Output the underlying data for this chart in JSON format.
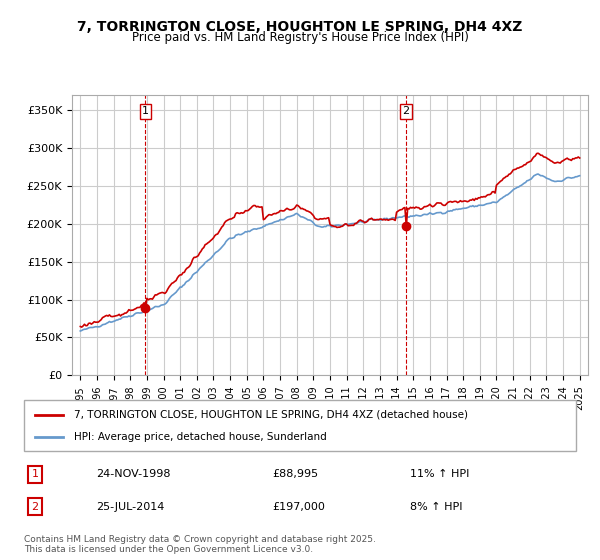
{
  "title": "7, TORRINGTON CLOSE, HOUGHTON LE SPRING, DH4 4XZ",
  "subtitle": "Price paid vs. HM Land Registry's House Price Index (HPI)",
  "legend_line1": "7, TORRINGTON CLOSE, HOUGHTON LE SPRING, DH4 4XZ (detached house)",
  "legend_line2": "HPI: Average price, detached house, Sunderland",
  "annotation1_label": "1",
  "annotation1_date": "24-NOV-1998",
  "annotation1_price": "£88,995",
  "annotation1_hpi": "11% ↑ HPI",
  "annotation2_label": "2",
  "annotation2_date": "25-JUL-2014",
  "annotation2_price": "£197,000",
  "annotation2_hpi": "8% ↑ HPI",
  "footer": "Contains HM Land Registry data © Crown copyright and database right 2025.\nThis data is licensed under the Open Government Licence v3.0.",
  "red_color": "#cc0000",
  "blue_color": "#6699cc",
  "vline_color": "#cc0000",
  "grid_color": "#cccccc",
  "bg_color": "#ffffff",
  "ylim": [
    0,
    370000
  ],
  "yticks": [
    0,
    50000,
    100000,
    150000,
    200000,
    250000,
    300000,
    350000
  ],
  "year_start": 1995,
  "year_end": 2025,
  "sale1_year": 1998.9,
  "sale2_year": 2014.55
}
